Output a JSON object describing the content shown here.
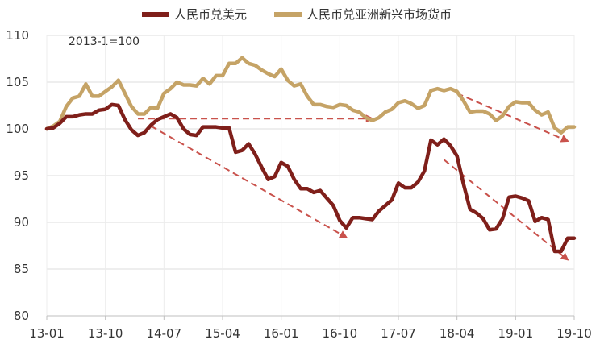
{
  "chart_data": {
    "type": "line",
    "annotation": "2013-1=100",
    "ylim": [
      80,
      110
    ],
    "yticks": [
      80,
      85,
      90,
      95,
      100,
      105,
      110
    ],
    "xticks": [
      "13-01",
      "13-10",
      "14-07",
      "15-04",
      "16-01",
      "16-10",
      "17-07",
      "18-04",
      "19-01",
      "19-10"
    ],
    "grid": true,
    "legend_position": "top",
    "series": [
      {
        "name": "人民币兑美元",
        "color": "#7f1f1a",
        "x": [
          "13-01",
          "13-02",
          "13-03",
          "13-04",
          "13-05",
          "13-06",
          "13-07",
          "13-08",
          "13-09",
          "13-10",
          "13-11",
          "13-12",
          "14-01",
          "14-02",
          "14-03",
          "14-04",
          "14-05",
          "14-06",
          "14-07",
          "14-08",
          "14-09",
          "14-10",
          "14-11",
          "14-12",
          "15-01",
          "15-02",
          "15-03",
          "15-04",
          "15-05",
          "15-06",
          "15-07",
          "15-08",
          "15-09",
          "15-10",
          "15-11",
          "15-12",
          "16-01",
          "16-02",
          "16-03",
          "16-04",
          "16-05",
          "16-06",
          "16-07",
          "16-08",
          "16-09",
          "16-10",
          "16-11",
          "16-12",
          "17-01",
          "17-02",
          "17-03",
          "17-04",
          "17-05",
          "17-06",
          "17-07",
          "17-08",
          "17-09",
          "17-10",
          "17-11",
          "17-12",
          "18-01",
          "18-02",
          "18-03",
          "18-04",
          "18-05",
          "18-06",
          "18-07",
          "18-08",
          "18-09",
          "18-10",
          "18-11",
          "18-12",
          "19-01",
          "19-02",
          "19-03",
          "19-04",
          "19-05",
          "19-06",
          "19-07",
          "19-08",
          "19-09",
          "19-10"
        ],
        "values": [
          100.0,
          100.1,
          100.6,
          101.3,
          101.3,
          101.5,
          101.6,
          101.6,
          102.0,
          102.1,
          102.6,
          102.5,
          101.0,
          99.9,
          99.3,
          99.6,
          100.4,
          101.0,
          101.3,
          101.6,
          101.2,
          100.0,
          99.4,
          99.3,
          100.2,
          100.2,
          100.2,
          100.1,
          100.1,
          97.5,
          97.7,
          98.4,
          97.3,
          95.9,
          94.6,
          94.9,
          96.4,
          96.0,
          94.6,
          93.6,
          93.6,
          93.2,
          93.4,
          92.6,
          91.8,
          90.2,
          89.4,
          90.5,
          90.5,
          90.4,
          90.3,
          91.2,
          91.8,
          92.4,
          94.2,
          93.7,
          93.7,
          94.3,
          95.5,
          98.8,
          98.3,
          98.9,
          98.2,
          97.1,
          94.1,
          91.4,
          91.0,
          90.4,
          89.2,
          89.3,
          90.4,
          92.7,
          92.8,
          92.6,
          92.3,
          90.1,
          90.5,
          90.3,
          86.9,
          86.9,
          88.3,
          88.3
        ]
      },
      {
        "name": "人民币兑亚洲新兴市场货币",
        "color": "#c5a366",
        "x": [
          "13-01",
          "13-02",
          "13-03",
          "13-04",
          "13-05",
          "13-06",
          "13-07",
          "13-08",
          "13-09",
          "13-10",
          "13-11",
          "13-12",
          "14-01",
          "14-02",
          "14-03",
          "14-04",
          "14-05",
          "14-06",
          "14-07",
          "14-08",
          "14-09",
          "14-10",
          "14-11",
          "14-12",
          "15-01",
          "15-02",
          "15-03",
          "15-04",
          "15-05",
          "15-06",
          "15-07",
          "15-08",
          "15-09",
          "15-10",
          "15-11",
          "15-12",
          "16-01",
          "16-02",
          "16-03",
          "16-04",
          "16-05",
          "16-06",
          "16-07",
          "16-08",
          "16-09",
          "16-10",
          "16-11",
          "16-12",
          "17-01",
          "17-02",
          "17-03",
          "17-04",
          "17-05",
          "17-06",
          "17-07",
          "17-08",
          "17-09",
          "17-10",
          "17-11",
          "17-12",
          "18-01",
          "18-02",
          "18-03",
          "18-04",
          "18-05",
          "18-06",
          "18-07",
          "18-08",
          "18-09",
          "18-10",
          "18-11",
          "18-12",
          "19-01",
          "19-02",
          "19-03",
          "19-04",
          "19-05",
          "19-06",
          "19-07",
          "19-08",
          "19-09",
          "19-10"
        ],
        "values": [
          100.0,
          100.3,
          100.8,
          102.4,
          103.3,
          103.5,
          104.8,
          103.5,
          103.5,
          104.0,
          104.5,
          105.2,
          103.8,
          102.4,
          101.6,
          101.6,
          102.3,
          102.2,
          103.8,
          104.3,
          105.0,
          104.7,
          104.7,
          104.6,
          105.4,
          104.8,
          105.7,
          105.7,
          107.0,
          107.0,
          107.6,
          107.0,
          106.8,
          106.3,
          105.9,
          105.6,
          106.4,
          105.2,
          104.6,
          104.8,
          103.5,
          102.6,
          102.6,
          102.4,
          102.3,
          102.6,
          102.5,
          102.0,
          101.8,
          101.2,
          100.9,
          101.2,
          101.8,
          102.1,
          102.8,
          103.0,
          102.7,
          102.2,
          102.5,
          104.1,
          104.3,
          104.1,
          104.3,
          104.0,
          103.0,
          101.8,
          101.9,
          101.9,
          101.6,
          100.9,
          101.4,
          102.4,
          102.9,
          102.8,
          102.8,
          102.0,
          101.5,
          101.8,
          100.1,
          99.6,
          100.2,
          100.2
        ]
      }
    ],
    "arrows": [
      {
        "from": {
          "x": "14-03",
          "y": 101.1
        },
        "to": {
          "x": "17-03",
          "y": 101.1
        }
      },
      {
        "from": {
          "x": "14-05",
          "y": 100.3
        },
        "to": {
          "x": "16-11",
          "y": 88.4
        }
      },
      {
        "from": {
          "x": "18-04",
          "y": 103.8
        },
        "to": {
          "x": "19-09",
          "y": 98.7
        }
      },
      {
        "from": {
          "x": "18-02",
          "y": 96.7
        },
        "to": {
          "x": "19-09",
          "y": 86.0
        }
      }
    ],
    "arrow_color": "#c9524c"
  }
}
